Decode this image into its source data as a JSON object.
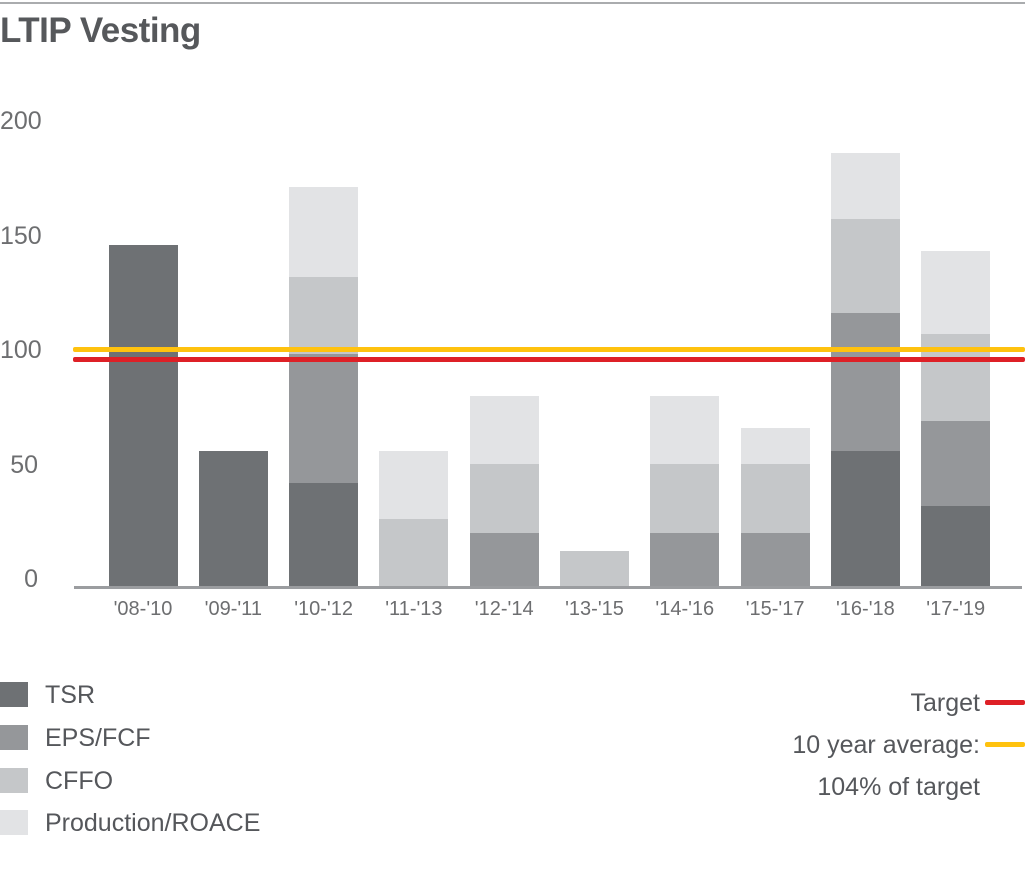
{
  "page": {
    "title": "LTIP Vesting"
  },
  "chart_data": {
    "type": "bar",
    "stacked": true,
    "title": "LTIP Vesting",
    "categories": [
      "'08-'10",
      "'09-'11",
      "'10-'12",
      "'11-'13",
      "'12-'14",
      "'13-'15",
      "'14-'16",
      "'15-'17",
      "'16-'18",
      "'17-'19"
    ],
    "series": [
      {
        "name": "TSR",
        "color": "#6e7174",
        "values": [
          150,
          60,
          46,
          0,
          0,
          0,
          0,
          0,
          60,
          36
        ]
      },
      {
        "name": "EPS/FCF",
        "color": "#95979a",
        "values": [
          0,
          0,
          56,
          0,
          24,
          0,
          24,
          24,
          60,
          37
        ]
      },
      {
        "name": "CFFO",
        "color": "#c5c7c9",
        "values": [
          0,
          0,
          34,
          30,
          30,
          16,
          30,
          30,
          41,
          38
        ]
      },
      {
        "name": "Production/ROACE",
        "color": "#e2e3e5",
        "values": [
          0,
          0,
          39,
          30,
          30,
          0,
          30,
          16,
          29,
          36
        ]
      }
    ],
    "stack_totals": [
      150,
      60,
      175,
      60,
      84,
      16,
      84,
      70,
      190,
      147
    ],
    "reference_lines": [
      {
        "name": "Target",
        "value": 100,
        "color": "#de2026"
      },
      {
        "name": "10 year average",
        "value": 104,
        "color": "#ffc20e"
      }
    ],
    "y_ticks": [
      0,
      50,
      100,
      150,
      200
    ],
    "ylim": [
      0,
      210
    ],
    "grid": false,
    "legend_position": "bottom"
  },
  "legend": {
    "items": [
      {
        "label": "TSR",
        "color": "#6e7174"
      },
      {
        "label": "EPS/FCF",
        "color": "#95979a"
      },
      {
        "label": "CFFO",
        "color": "#c5c7c9"
      },
      {
        "label": "Production/ROACE",
        "color": "#e2e3e5"
      }
    ],
    "target_label": "Target",
    "target_color": "#de2026",
    "average_label": "10 year average:",
    "average_color": "#ffc20e",
    "average_value_label": "104% of target"
  }
}
